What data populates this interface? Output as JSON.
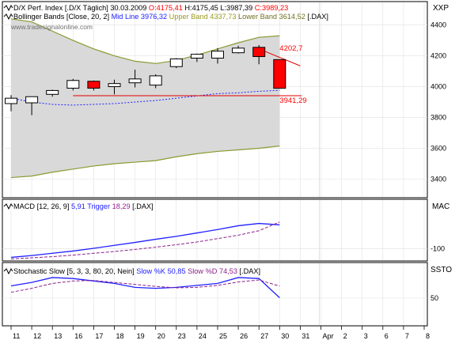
{
  "app": {
    "corner_label": "XXP",
    "watermark": "www.tradesignalonline.com"
  },
  "colors": {
    "background": "#ffffff",
    "band_fill": "#d9d9d9",
    "band_line": "#8a9a30",
    "mid_line": "#2020ff",
    "up_candle": "#ffffff",
    "down_candle": "#ff0000",
    "grid": "#e2e2e2",
    "text": "#000000",
    "red_text": "#ff0000",
    "blue_text": "#2020ff",
    "olive_text": "#9a9a20",
    "dark_olive_text": "#707020",
    "vline": "#d6e8d6"
  },
  "chart_data": [
    {
      "type": "candlestick",
      "title": "D/X Perf. Index [.D/X  Täglich] 30.03.2009",
      "title_parts": [
        {
          "text": "D/X Perf. Index [.D/X  Täglich] 30.03.2009",
          "color": "#000000"
        },
        {
          "text": "  O:4175,41",
          "color": "#ff0000"
        },
        {
          "text": " H:4175,45",
          "color": "#000000"
        },
        {
          "text": " L:3987,39",
          "color": "#000000"
        },
        {
          "text": " C:3989,23",
          "color": "#ff0000"
        }
      ],
      "subtitle_parts": [
        {
          "text": "Bollinger Bands [Close, 20, 2]",
          "color": "#000000"
        },
        {
          "text": " Mid Line 3976,32",
          "color": "#2020ff"
        },
        {
          "text": " Upper Band 4337,73",
          "color": "#9a9a20"
        },
        {
          "text": " Lower Band 3614,52",
          "color": "#707020"
        },
        {
          "text": " [.DAX]",
          "color": "#000000"
        }
      ],
      "ylim": [
        3300,
        4480
      ],
      "yticks": [
        3400,
        3600,
        3800,
        4000,
        4200,
        4400
      ],
      "ytick_labels": [
        "3400",
        "3600",
        "3800",
        "4000",
        "4200",
        "4400"
      ],
      "candles": [
        {
          "date": "11",
          "o": 3890,
          "h": 3945,
          "l": 3840,
          "c": 3925
        },
        {
          "date": "12",
          "o": 3895,
          "h": 3935,
          "l": 3815,
          "c": 3935
        },
        {
          "date": "13",
          "o": 3950,
          "h": 3980,
          "l": 3935,
          "c": 3975
        },
        {
          "date": "16",
          "o": 3990,
          "h": 4050,
          "l": 3975,
          "c": 4040
        },
        {
          "date": "17",
          "o": 4035,
          "h": 4040,
          "l": 3975,
          "c": 3990
        },
        {
          "date": "18",
          "o": 4000,
          "h": 4045,
          "l": 3950,
          "c": 4020
        },
        {
          "date": "19",
          "o": 4025,
          "h": 4110,
          "l": 3995,
          "c": 4050
        },
        {
          "date": "20",
          "o": 4010,
          "h": 4080,
          "l": 3990,
          "c": 4070
        },
        {
          "date": "23",
          "o": 4130,
          "h": 4185,
          "l": 4120,
          "c": 4180
        },
        {
          "date": "24",
          "o": 4185,
          "h": 4215,
          "l": 4160,
          "c": 4210
        },
        {
          "date": "25",
          "o": 4185,
          "h": 4250,
          "l": 4150,
          "c": 4230
        },
        {
          "date": "26",
          "o": 4220,
          "h": 4265,
          "l": 4215,
          "c": 4250
        },
        {
          "date": "27",
          "o": 4255,
          "h": 4270,
          "l": 4145,
          "c": 4195
        },
        {
          "date": "30",
          "o": 4175.41,
          "h": 4175.45,
          "l": 3987.39,
          "c": 3989.23
        }
      ],
      "bands": {
        "upper": [
          4440,
          4420,
          4360,
          4300,
          4245,
          4200,
          4165,
          4150,
          4170,
          4205,
          4245,
          4285,
          4320,
          4330
        ],
        "mid": [
          3925,
          3900,
          3885,
          3880,
          3885,
          3890,
          3900,
          3910,
          3925,
          3940,
          3955,
          3960,
          3970,
          3976
        ],
        "lower": [
          3410,
          3420,
          3445,
          3465,
          3485,
          3500,
          3510,
          3520,
          3545,
          3565,
          3580,
          3590,
          3600,
          3615
        ]
      },
      "annotations": [
        {
          "text": "4202,7",
          "value": 4202.7,
          "color": "#ff0000"
        },
        {
          "text": "3941,29",
          "value": 3941.29,
          "color": "#ff0000"
        }
      ],
      "support_line": {
        "value": 3941.29,
        "from_date": "16",
        "to_date": "30"
      },
      "resistance_segment": {
        "from_date": "27",
        "from_value": 4245,
        "to_date": "30",
        "to_value": 4135
      }
    },
    {
      "type": "line",
      "title_parts": [
        {
          "text": "MACD [12, 26, 9]",
          "color": "#000000"
        },
        {
          "text": " 5,91",
          "color": "#2020ff"
        },
        {
          "text": " Trigger",
          "color": "#2020ff"
        },
        {
          "text": " 18,29",
          "color": "#9a2090"
        },
        {
          "text": " [.DAX]",
          "color": "#000000"
        }
      ],
      "corner_label": "MAC",
      "ylim": [
        -140,
        70
      ],
      "yticks": [
        -100
      ],
      "ytick_labels": [
        "-100"
      ],
      "series": [
        {
          "values": [
            -138,
            -130,
            -120,
            -110,
            -98,
            -85,
            -72,
            -58,
            -45,
            -30,
            -15,
            2,
            12,
            5.91
          ],
          "color": "#2020ff"
        },
        {
          "values": [
            -145,
            -140,
            -135,
            -128,
            -120,
            -112,
            -103,
            -93,
            -82,
            -70,
            -55,
            -40,
            -20,
            18.29
          ],
          "color": "#8a208a"
        }
      ]
    },
    {
      "type": "line",
      "title_parts": [
        {
          "text": "Stochastic Slow [5, 3, 3, 80, 20, Nein]",
          "color": "#000000"
        },
        {
          "text": " Slow %K 50,85",
          "color": "#2020ff"
        },
        {
          "text": " Slow %D 74,53",
          "color": "#8a208a"
        },
        {
          "text": " [.DAX]",
          "color": "#000000"
        }
      ],
      "corner_label": "SSTO",
      "ylim": [
        0,
        100
      ],
      "yticks": [
        50
      ],
      "ytick_labels": [
        "50"
      ],
      "series": [
        {
          "values": [
            75,
            82,
            92,
            90,
            85,
            80,
            72,
            70,
            72,
            76,
            80,
            92,
            90,
            50.85
          ],
          "color": "#2020ff"
        },
        {
          "values": [
            62,
            70,
            80,
            85,
            86,
            82,
            78,
            74,
            71,
            72,
            76,
            83,
            87,
            74.53
          ],
          "color": "#8a208a"
        }
      ]
    }
  ],
  "x_axis": {
    "labels": [
      "11",
      "12",
      "13",
      "16",
      "17",
      "18",
      "19",
      "20",
      "23",
      "24",
      "25",
      "26",
      "27",
      "30",
      "31",
      "Apr",
      "2",
      "3",
      "6",
      "7",
      "8"
    ]
  }
}
